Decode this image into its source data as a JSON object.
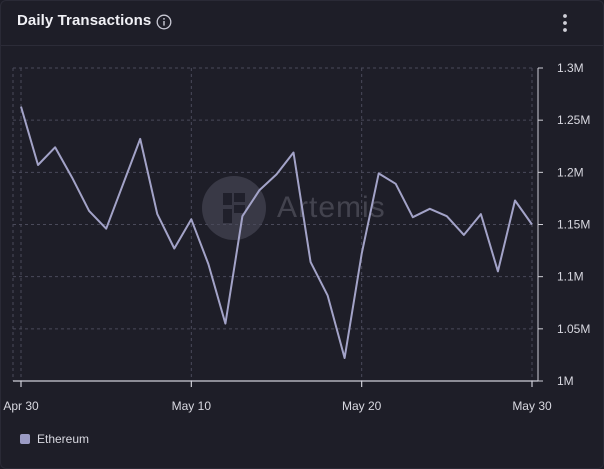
{
  "header": {
    "title": "Daily Transactions"
  },
  "watermark": {
    "text": "Artemis"
  },
  "colors": {
    "line": "#a3a3c8",
    "grid": "#4a4a5a",
    "axis": "#cfcfd8",
    "background": "#1e1e28"
  },
  "icons": {
    "info": "info-icon",
    "menu": "vertical-dots-icon"
  },
  "chart_data": {
    "type": "line",
    "title": "Daily Transactions",
    "xlabel": "",
    "ylabel": "",
    "x_tick_labels": [
      "Apr 30",
      "May 10",
      "May 20",
      "May 30"
    ],
    "y_tick_labels": [
      "1M",
      "1.05M",
      "1.1M",
      "1.15M",
      "1.2M",
      "1.25M",
      "1.3M"
    ],
    "ylim": [
      1000000,
      1300000
    ],
    "grid": true,
    "legend_position": "bottom-left",
    "x": [
      "2024-04-30",
      "2024-05-01",
      "2024-05-02",
      "2024-05-03",
      "2024-05-04",
      "2024-05-05",
      "2024-05-06",
      "2024-05-07",
      "2024-05-08",
      "2024-05-09",
      "2024-05-10",
      "2024-05-11",
      "2024-05-12",
      "2024-05-13",
      "2024-05-14",
      "2024-05-15",
      "2024-05-16",
      "2024-05-17",
      "2024-05-18",
      "2024-05-19",
      "2024-05-20",
      "2024-05-21",
      "2024-05-22",
      "2024-05-23",
      "2024-05-24",
      "2024-05-25",
      "2024-05-26",
      "2024-05-27",
      "2024-05-28",
      "2024-05-29",
      "2024-05-30"
    ],
    "series": [
      {
        "name": "Ethereum",
        "values": [
          1263000,
          1207000,
          1224000,
          1195000,
          1163000,
          1146000,
          1189000,
          1232000,
          1160000,
          1127000,
          1155000,
          1112000,
          1055000,
          1158000,
          1183000,
          1198000,
          1219000,
          1114000,
          1082000,
          1022000,
          1122000,
          1199000,
          1189000,
          1157000,
          1165000,
          1158000,
          1140000,
          1160000,
          1105000,
          1173000,
          1150000
        ]
      }
    ]
  }
}
